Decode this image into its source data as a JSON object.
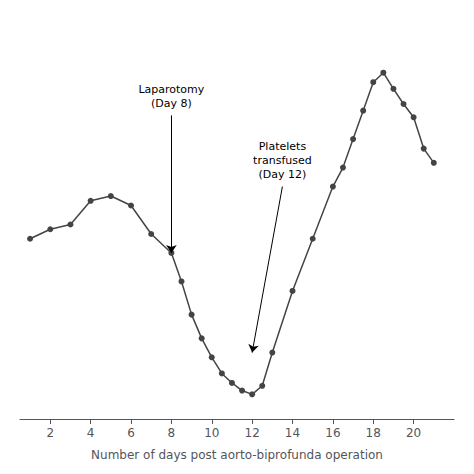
{
  "chart_data": {
    "type": "line",
    "x": [
      1,
      2,
      3,
      4,
      5,
      6,
      7,
      8,
      8.5,
      9,
      9.5,
      10,
      10.5,
      11,
      11.5,
      12,
      12.5,
      13,
      14,
      15,
      16,
      16.5,
      17,
      17.5,
      18,
      18.5,
      19,
      19.5,
      20,
      20.5,
      21
    ],
    "values": [
      210,
      220,
      225,
      250,
      255,
      245,
      215,
      195,
      165,
      130,
      105,
      85,
      68,
      58,
      50,
      46,
      55,
      90,
      155,
      210,
      265,
      285,
      315,
      345,
      375,
      385,
      368,
      352,
      338,
      305,
      290
    ],
    "color": "#444444",
    "marker": "circle",
    "xlim": [
      0.5,
      22
    ],
    "ylim": [
      20,
      430
    ],
    "xticks": [
      2,
      4,
      6,
      8,
      10,
      12,
      14,
      16,
      18,
      20
    ],
    "xlabel": "Number of days post aorto-biprofunda operation",
    "tick_labels": "x",
    "grid": false,
    "annotations": [
      {
        "text": "Laparotomy\n(Day 8)",
        "x": 8,
        "y": 195,
        "text_x": 8,
        "text_y": 340
      },
      {
        "text": "Platelets\ntransfused\n(Day 12)",
        "x": 12,
        "y": 90,
        "text_x": 13.5,
        "text_y": 265
      }
    ]
  }
}
